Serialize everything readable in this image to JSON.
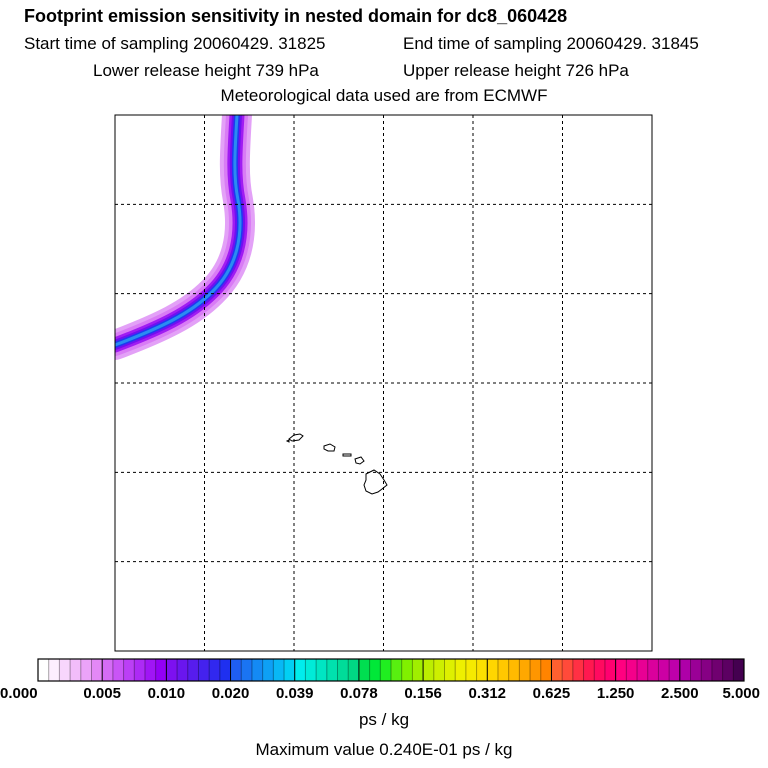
{
  "header": {
    "title": "Footprint emission sensitivity in nested domain for dc8_060428",
    "start_time": "Start time of sampling 20060429. 31825",
    "end_time": "End time of sampling 20060429. 31845",
    "lower_release": "Lower release height  739 hPa",
    "upper_release": "Upper release height  726 hPa",
    "met_data": "Meteorological data used are from ECMWF"
  },
  "chart_data": {
    "type": "heatmap",
    "title": "Footprint emission sensitivity in nested domain for dc8_060428",
    "grid": true,
    "grid_divisions": {
      "columns": 6,
      "rows": 6
    },
    "colorbar": {
      "tick_labels": [
        "0.000",
        "0.005",
        "0.010",
        "0.020",
        "0.039",
        "0.078",
        "0.156",
        "0.312",
        "0.625",
        "1.250",
        "2.500",
        "5.000"
      ],
      "segments_per_interval": 6,
      "colors": [
        "#ffffff",
        "#fdeefe",
        "#f8d6fc",
        "#f2bdfa",
        "#eba3f8",
        "#e388f6",
        "#d56cf5",
        "#c955f5",
        "#bb3ff5",
        "#ad2af5",
        "#a015f5",
        "#9300f5",
        "#7d10f0",
        "#6a16ee",
        "#571ced",
        "#4422ee",
        "#3128ef",
        "#1f30f0",
        "#1f5ef2",
        "#1a74f3",
        "#148af4",
        "#0ea0f5",
        "#08b8f5",
        "#02cff4",
        "#00eded",
        "#00ebd8",
        "#00e6c3",
        "#00e1ae",
        "#00dc99",
        "#00d784",
        "#00de50",
        "#00e838",
        "#20ee20",
        "#58ef10",
        "#80f000",
        "#a0ee00",
        "#bcee00",
        "#cdef00",
        "#def000",
        "#eef000",
        "#f6ea00",
        "#fce000",
        "#ffd600",
        "#ffc800",
        "#ffba00",
        "#ffa800",
        "#ff9600",
        "#ff8400",
        "#ff6030",
        "#ff4a3a",
        "#ff3044",
        "#ff1850",
        "#ff0a60",
        "#ff0070",
        "#ff0080",
        "#f4008a",
        "#e80094",
        "#da009c",
        "#cc00a4",
        "#be00aa",
        "#ae00a8",
        "#9a0096",
        "#860084",
        "#700070",
        "#5c0062",
        "#440050"
      ],
      "unit": "ps / kg"
    },
    "plume_color_levels": [
      "#e3a1f7",
      "#d97cf5",
      "#a01cf2",
      "#6f10f0",
      "#1c3cf0",
      "#2a8cf2"
    ],
    "maximum_value": "Maximum value  0.240E-01 ps / kg"
  }
}
